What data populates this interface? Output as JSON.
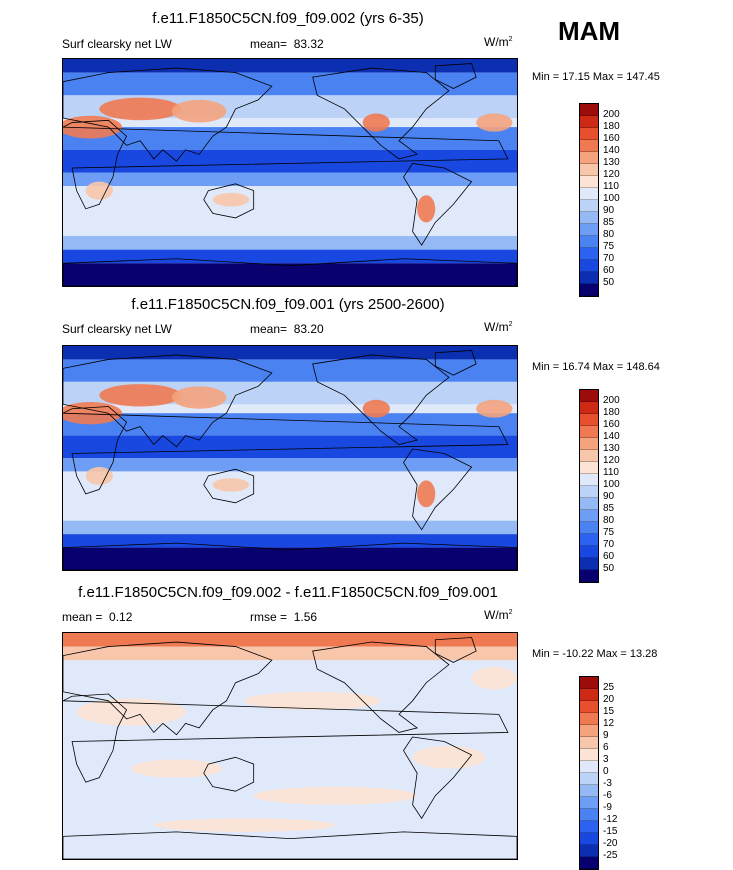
{
  "season": "MAM",
  "palette_hex": [
    "#08006e",
    "#0b2fb0",
    "#1848e0",
    "#2b63f0",
    "#4a82f2",
    "#6d9df4",
    "#94b9f5",
    "#bcd3f7",
    "#dfe9fa",
    "#fbe4d6",
    "#f8c6aa",
    "#f4a37d",
    "#ef7a52",
    "#e6502d",
    "#cc2a14",
    "#9c0c0a"
  ],
  "panels": [
    {
      "id": "top",
      "title": "f.e11.F1850C5CN.f09_f09.002 (yrs 6-35)",
      "left_label": "Surf clearsky net LW",
      "mean_label": "mean=",
      "mean_value": "83.32",
      "units": "W/m",
      "units_exp": "2",
      "min_label": "Min =",
      "min_value": "17.15",
      "max_label": "Max =",
      "max_value": "147.45",
      "colorbar_levels": [
        "50",
        "60",
        "70",
        "75",
        "80",
        "85",
        "90",
        "100",
        "110",
        "120",
        "130",
        "140",
        "160",
        "180",
        "200"
      ],
      "map_kind": "absolute"
    },
    {
      "id": "middle",
      "title": "f.e11.F1850C5CN.f09_f09.001 (yrs 2500-2600)",
      "left_label": "Surf clearsky net LW",
      "mean_label": "mean=",
      "mean_value": "83.20",
      "units": "W/m",
      "units_exp": "2",
      "min_label": "Min =",
      "min_value": "16.74",
      "max_label": "Max =",
      "max_value": "148.64",
      "colorbar_levels": [
        "50",
        "60",
        "70",
        "75",
        "80",
        "85",
        "90",
        "100",
        "110",
        "120",
        "130",
        "140",
        "160",
        "180",
        "200"
      ],
      "map_kind": "absolute"
    },
    {
      "id": "bottom",
      "title": "f.e11.F1850C5CN.f09_f09.002 - f.e11.F1850C5CN.f09_f09.001",
      "left_label": "mean =",
      "left_value": "0.12",
      "mean_label": "rmse =",
      "mean_value": "1.56",
      "units": "W/m",
      "units_exp": "2",
      "min_label": "Min =",
      "min_value": "-10.22",
      "max_label": "Max =",
      "max_value": "13.28",
      "colorbar_levels": [
        "-25",
        "-20",
        "-15",
        "-12",
        "-9",
        "-6",
        "-3",
        "0",
        "3",
        "6",
        "9",
        "12",
        "15",
        "20",
        "25"
      ],
      "map_kind": "difference"
    }
  ],
  "chart_data": {
    "type": "heatmap",
    "title": "MAM",
    "variable": "Surf clearsky net LW",
    "units": "W/m2",
    "maps": [
      {
        "name": "f.e11.F1850C5CN.f09_f09.002 (yrs 6-35)",
        "mean": 83.32,
        "min": 17.15,
        "max": 147.45,
        "levels": [
          50,
          60,
          70,
          75,
          80,
          85,
          90,
          100,
          110,
          120,
          130,
          140,
          160,
          180,
          200
        ]
      },
      {
        "name": "f.e11.F1850C5CN.f09_f09.001 (yrs 2500-2600)",
        "mean": 83.2,
        "min": 16.74,
        "max": 148.64,
        "levels": [
          50,
          60,
          70,
          75,
          80,
          85,
          90,
          100,
          110,
          120,
          130,
          140,
          160,
          180,
          200
        ]
      },
      {
        "name": "f.e11.F1850C5CN.f09_f09.002 - f.e11.F1850C5CN.f09_f09.001",
        "mean": 0.12,
        "rmse": 1.56,
        "min": -10.22,
        "max": 13.28,
        "levels": [
          -25,
          -20,
          -15,
          -12,
          -9,
          -6,
          -3,
          0,
          3,
          6,
          9,
          12,
          15,
          20,
          25
        ]
      }
    ]
  }
}
